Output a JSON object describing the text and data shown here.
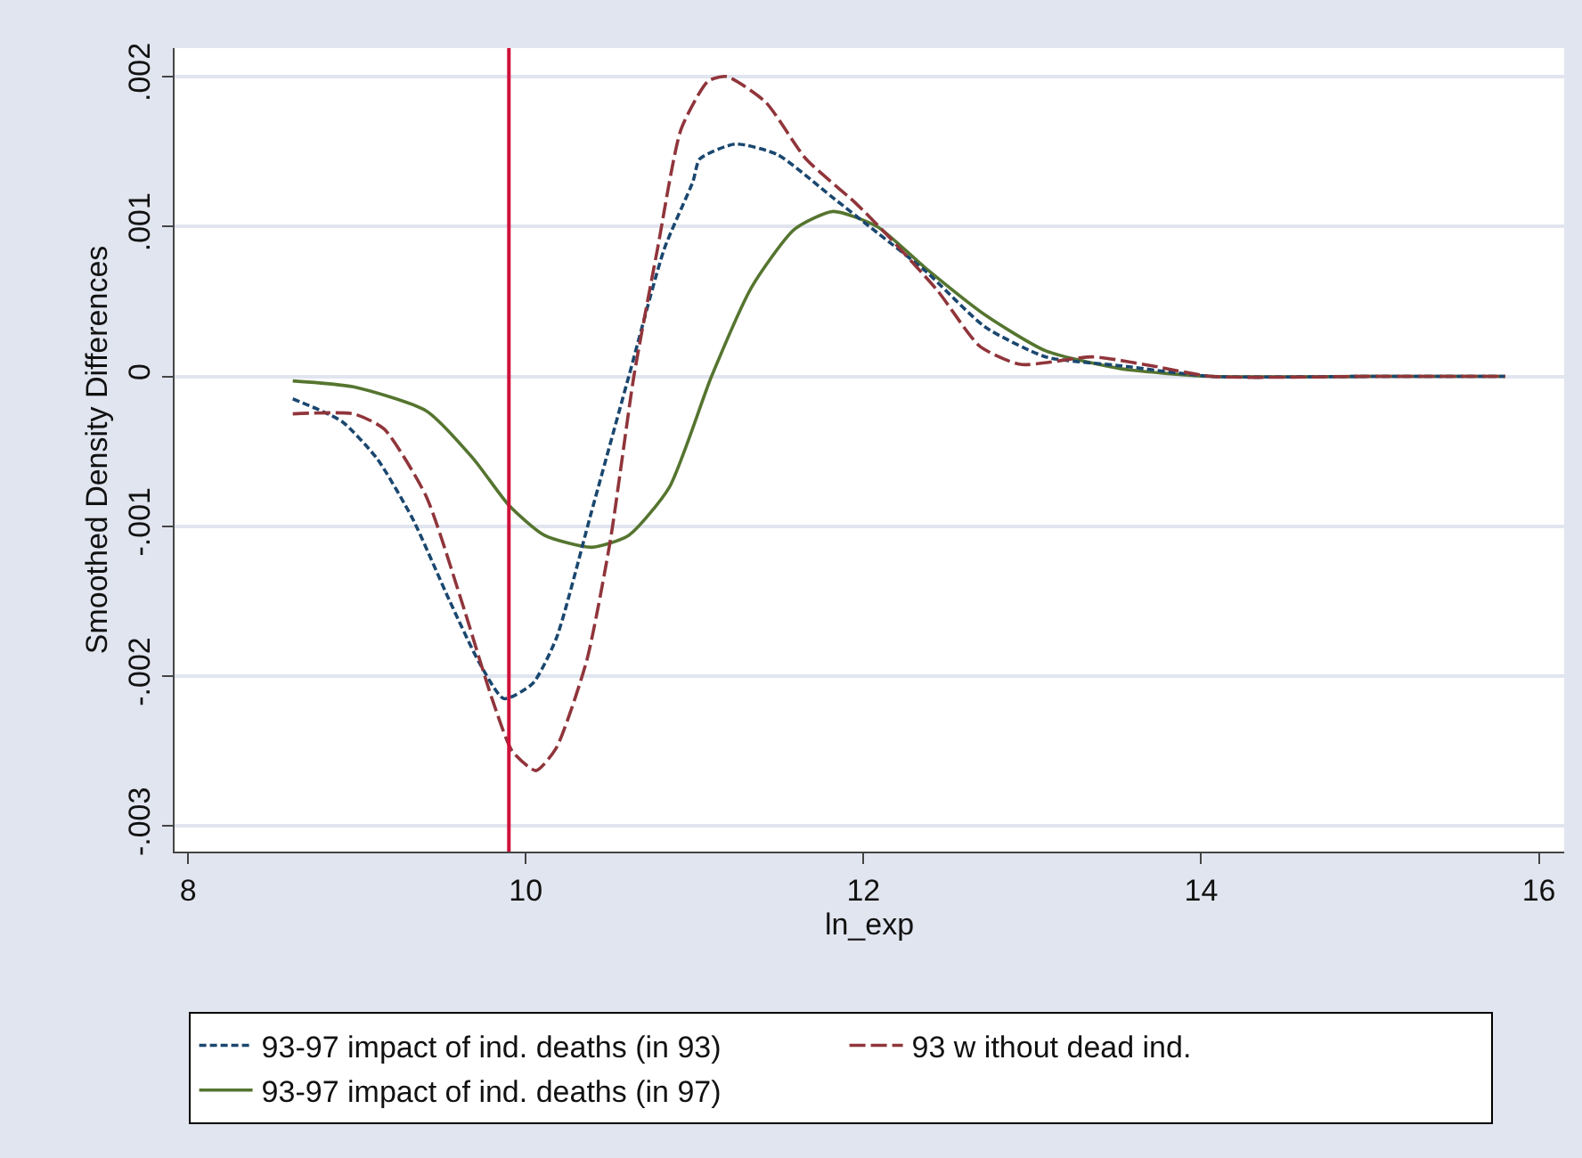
{
  "chart_data": {
    "type": "line",
    "xlabel": "ln_exp",
    "ylabel": "Smoothed Density Differences",
    "xlim": [
      7.92,
      16.15
    ],
    "xticks": [
      8,
      10,
      12,
      14,
      16
    ],
    "ylim": [
      -0.00317,
      0.00219
    ],
    "yticks": [
      {
        "value": 0.002,
        "label": ".002"
      },
      {
        "value": 0.001,
        "label": ".001"
      },
      0,
      {
        "value": -0.001,
        "label": "-.001"
      },
      {
        "value": -0.002,
        "label": "-.002"
      },
      {
        "value": -0.003,
        "label": "-.003"
      }
    ],
    "grid": "y",
    "legend": "bottom",
    "marker": "none",
    "ref_lines": [
      {
        "axis": "x",
        "value": 9.9,
        "color": "#d0103a",
        "line_style": "solid"
      }
    ],
    "series": [
      {
        "name": "93-97 impact of ind. deaths (in 93)",
        "color": "#1a476f",
        "line_style": "dashed",
        "x": [
          8.62,
          8.91,
          9.12,
          9.33,
          9.55,
          9.72,
          9.87,
          10.04,
          10.18,
          10.39,
          10.61,
          10.82,
          10.99,
          11.03,
          11.24,
          11.49,
          11.81,
          12.08,
          12.37,
          12.72,
          13.08,
          13.53,
          14.06,
          15.0,
          15.8
        ],
        "values": [
          -0.00015,
          -0.0003,
          -0.00055,
          -0.00095,
          -0.0015,
          -0.0019,
          -0.00215,
          -0.00205,
          -0.00175,
          -0.0009,
          0,
          0.00085,
          0.0013,
          0.00145,
          0.00155,
          0.00148,
          0.0012,
          0.00096,
          0.0007,
          0.00033,
          0.00013,
          7e-05,
          0,
          0,
          0
        ]
      },
      {
        "name": "93 w ithout dead ind.",
        "color": "#90353b",
        "line_style": "longdash",
        "x": [
          8.62,
          8.98,
          9.16,
          9.41,
          9.62,
          9.8,
          9.92,
          10.06,
          10.18,
          10.36,
          10.5,
          10.64,
          10.78,
          10.92,
          11.08,
          11.19,
          11.42,
          11.66,
          11.95,
          12.16,
          12.44,
          12.69,
          12.93,
          13.36,
          13.71,
          14.06,
          15.0,
          15.8
        ],
        "values": [
          -0.00025,
          -0.00025,
          -0.00035,
          -0.0008,
          -0.0015,
          -0.00215,
          -0.0025,
          -0.00263,
          -0.00248,
          -0.0019,
          -0.0011,
          0,
          0.00085,
          0.00165,
          0.00197,
          0.002,
          0.00183,
          0.00145,
          0.00116,
          0.00092,
          0.00057,
          0.0002,
          8e-05,
          0.00013,
          7e-05,
          0,
          0,
          0
        ]
      },
      {
        "name": "93-97 impact of ind. deaths (in 97)",
        "color": "#55752f",
        "line_style": "solid",
        "x": [
          8.62,
          8.98,
          9.41,
          9.69,
          9.9,
          10.11,
          10.39,
          10.61,
          10.85,
          11.1,
          11.34,
          11.59,
          11.82,
          12.08,
          12.37,
          12.72,
          13.08,
          13.53,
          14.06,
          15.0,
          15.8
        ],
        "values": [
          -3e-05,
          -7e-05,
          -0.00023,
          -0.00055,
          -0.00086,
          -0.00106,
          -0.00114,
          -0.00106,
          -0.00074,
          0,
          0.0006,
          0.00098,
          0.0011,
          0.001,
          0.00072,
          0.00041,
          0.00017,
          5e-05,
          0,
          0,
          0
        ]
      }
    ]
  }
}
